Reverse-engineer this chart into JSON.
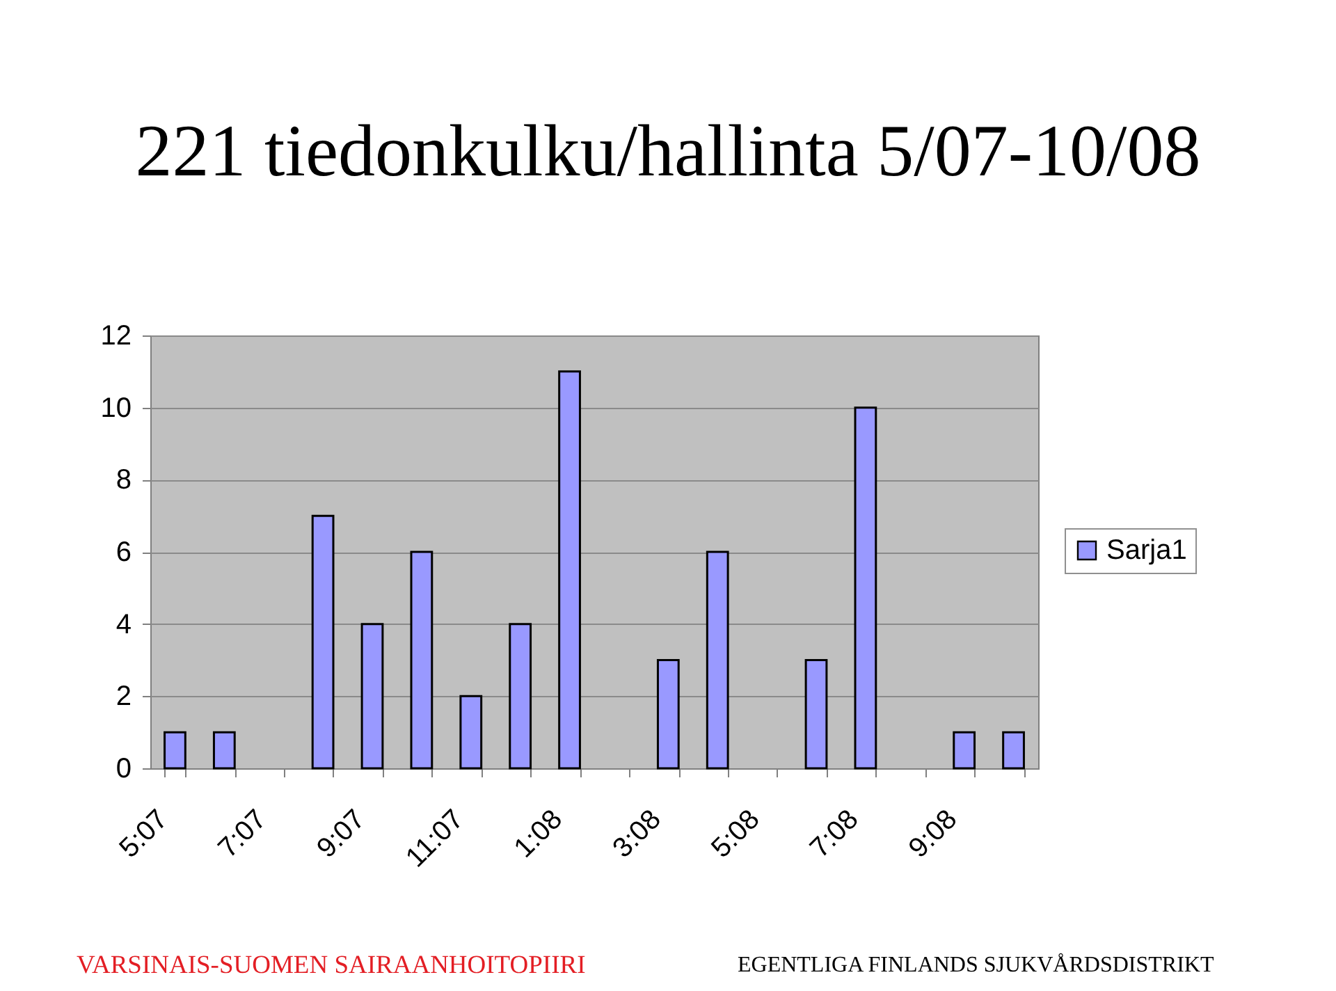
{
  "chart_data": {
    "type": "bar",
    "title": "221 tiedonkulku/hallinta 5/07-10/08",
    "categories": [
      "5:07",
      null,
      "7:07",
      null,
      "9:07",
      null,
      "11:07",
      null,
      "1:08",
      null,
      "3:08",
      null,
      "5:08",
      null,
      "7:08",
      null,
      "9:08",
      null
    ],
    "series": [
      {
        "name": "Sarja1",
        "color": "#9999ff",
        "values": [
          1,
          1,
          null,
          7,
          4,
          6,
          2,
          4,
          11,
          null,
          3,
          6,
          null,
          3,
          10,
          null,
          1,
          1
        ]
      }
    ],
    "ylim": [
      0,
      12
    ],
    "yticks": [
      0,
      2,
      4,
      6,
      8,
      10,
      12
    ],
    "grid": "y",
    "legend": "right",
    "annotations": [
      "VARSINAIS-SUOMEN SAIRAANHOITOPIIRI",
      "EGENTLIGA FINLANDS SJUKVÅRDSDISTRIKT"
    ]
  }
}
